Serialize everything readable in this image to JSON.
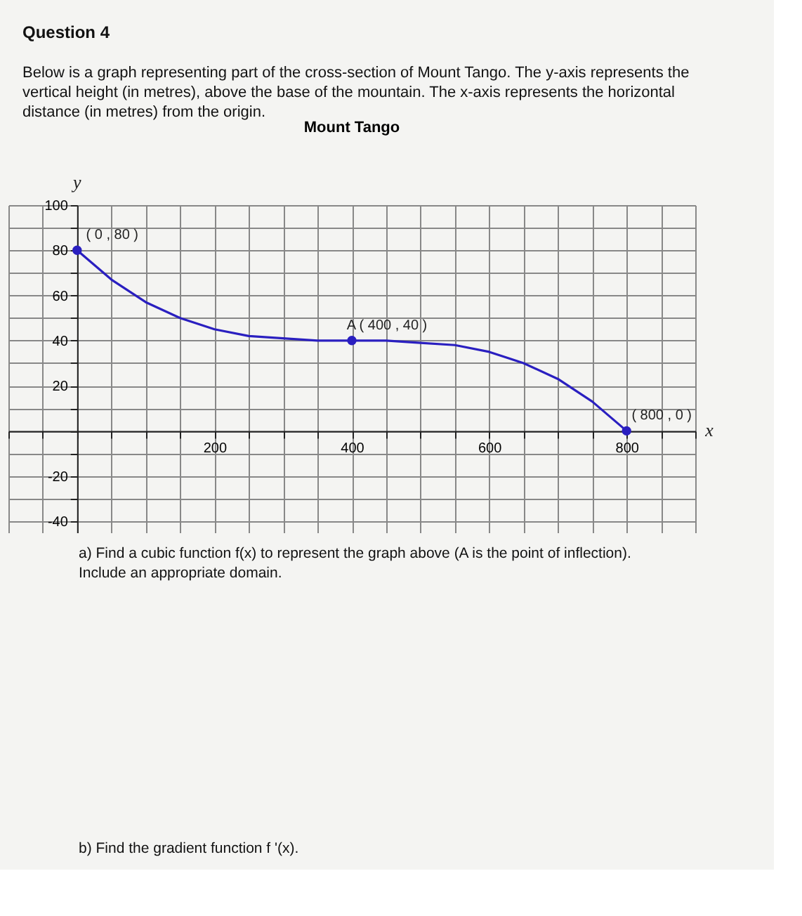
{
  "chart_data": {
    "type": "line",
    "title": "Mount Tango",
    "xlabel": "x",
    "ylabel": "y",
    "annotations": [
      "Question 4",
      "Below is a graph representing part of the cross-section of Mount Tango.  The y-axis represents the vertical height (in metres), above the base of the mountain. The x-axis represents the horizontal distance (in metres) from the origin.",
      "a)  Find a cubic function f(x) to represent the graph above (A is the point of inflection). Include an appropriate domain.",
      "b)  Find the gradient function f '(x).",
      {
        "text": "( 0 , 80 )",
        "x": 0,
        "y": 80
      },
      {
        "text": "A ( 400 , 40 )",
        "x": 400,
        "y": 40
      },
      {
        "text": "( 800 , 0 )",
        "x": 800,
        "y": 0
      }
    ],
    "series": [
      {
        "color": "#2a1fc0",
        "x": [
          0,
          50,
          100,
          150,
          200,
          250,
          300,
          350,
          400,
          450,
          500,
          550,
          600,
          650,
          700,
          750,
          800
        ],
        "values": [
          80,
          67,
          57,
          50,
          45,
          42,
          41,
          40,
          40,
          40,
          39,
          38,
          35,
          30,
          23,
          13,
          0
        ]
      },
      {
        "type": "scatter",
        "color": "#2a1fc0",
        "marker": "circle",
        "x": [
          0,
          400,
          800
        ],
        "values": [
          80,
          40,
          0
        ]
      }
    ],
    "xlim": [
      -100,
      900
    ],
    "ylim": [
      -45,
      100
    ],
    "xticks": [
      {
        "value": -100,
        "label": null
      },
      {
        "value": -50,
        "label": null
      },
      {
        "value": 0,
        "label": null
      },
      {
        "value": 50,
        "label": null
      },
      {
        "value": 100,
        "label": null
      },
      {
        "value": 150,
        "label": null
      },
      200,
      {
        "value": 250,
        "label": null
      },
      {
        "value": 300,
        "label": null
      },
      {
        "value": 350,
        "label": null
      },
      400,
      {
        "value": 450,
        "label": null
      },
      {
        "value": 500,
        "label": null
      },
      {
        "value": 550,
        "label": null
      },
      600,
      {
        "value": 650,
        "label": null
      },
      {
        "value": 700,
        "label": null
      },
      {
        "value": 750,
        "label": null
      },
      800,
      {
        "value": 850,
        "label": null
      },
      {
        "value": 900,
        "label": null
      }
    ],
    "yticks": [
      -40,
      {
        "value": -30,
        "label": null
      },
      -20,
      {
        "value": -10,
        "label": null
      },
      {
        "value": 0,
        "label": null
      },
      {
        "value": 10,
        "label": null
      },
      20,
      {
        "value": 30,
        "label": null
      },
      40,
      {
        "value": 50,
        "label": null
      },
      60,
      {
        "value": 70,
        "label": null
      },
      80,
      {
        "value": 90,
        "label": null
      },
      100
    ],
    "grid": true,
    "line_style": "solid"
  }
}
